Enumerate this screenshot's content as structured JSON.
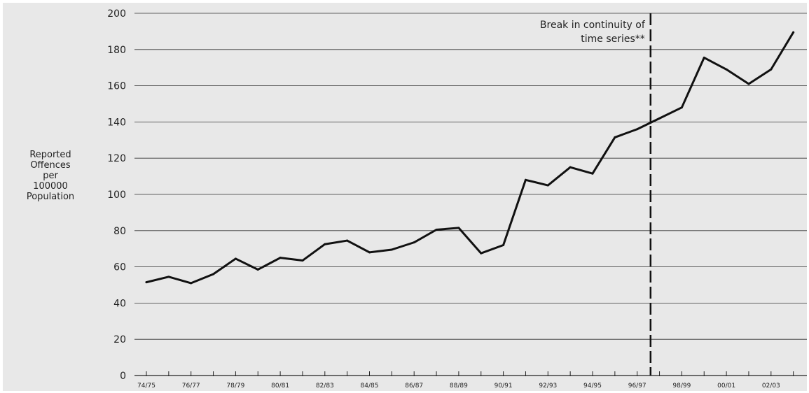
{
  "chart_data": {
    "type": "line",
    "title": "",
    "xlabel": "",
    "ylabel_lines": [
      "Reported",
      "Offences",
      "per",
      "100000",
      "Population"
    ],
    "ylim": [
      0,
      200
    ],
    "yticks": [
      0,
      20,
      40,
      60,
      80,
      100,
      120,
      140,
      160,
      180,
      200
    ],
    "grid": true,
    "x": [
      "74/75",
      "75/76",
      "76/77",
      "77/78",
      "78/79",
      "79/80",
      "80/81",
      "81/82",
      "82/83",
      "83/84",
      "84/85",
      "85/86",
      "86/87",
      "87/88",
      "88/89",
      "89/90",
      "90/91",
      "91/92",
      "92/93",
      "93/94",
      "94/95",
      "95/96",
      "96/97",
      "97/98",
      "98/99",
      "99/00",
      "00/01",
      "01/02",
      "02/03",
      "03/04"
    ],
    "xtick_labels": [
      "74/75",
      "76/77",
      "78/79",
      "80/81",
      "82/83",
      "84/85",
      "86/87",
      "88/89",
      "90/91",
      "92/93",
      "94/95",
      "96/97",
      "98/99",
      "00/01",
      "02/03"
    ],
    "series": [
      {
        "values": [
          51.5,
          54.5,
          51,
          56,
          64.5,
          58.5,
          65,
          63.5,
          72.5,
          74.5,
          68,
          69.5,
          73.5,
          80.5,
          81.5,
          67.5,
          72,
          108,
          105,
          115,
          111.5,
          131.5,
          136,
          142,
          148,
          175.5,
          169,
          161,
          169,
          189.5
        ]
      }
    ],
    "break_line": {
      "position": "between 96/97 and 97/98",
      "label_lines": [
        "Break in continuity of",
        "time series**"
      ]
    }
  }
}
